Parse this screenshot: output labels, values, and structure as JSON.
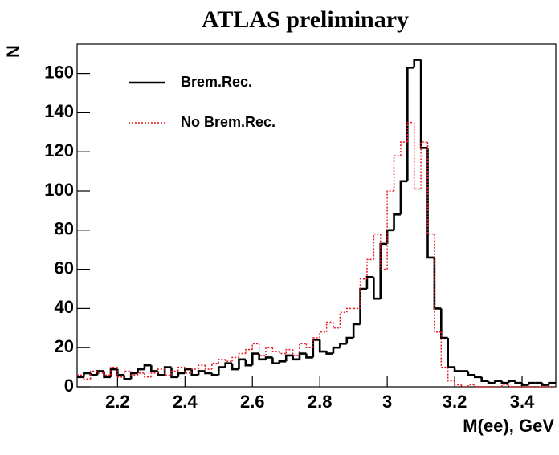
{
  "chart_data": {
    "type": "histogram",
    "title": "ATLAS preliminary",
    "x_label": "M(ee), GeV",
    "y_label": "N",
    "bins": [
      2.08,
      2.1,
      2.12,
      2.14,
      2.16,
      2.18,
      2.2,
      2.22,
      2.24,
      2.26,
      2.28,
      2.3,
      2.32,
      2.34,
      2.36,
      2.38,
      2.4,
      2.42,
      2.44,
      2.46,
      2.48,
      2.5,
      2.52,
      2.54,
      2.56,
      2.58,
      2.6,
      2.62,
      2.64,
      2.66,
      2.68,
      2.7,
      2.72,
      2.74,
      2.76,
      2.78,
      2.8,
      2.82,
      2.84,
      2.86,
      2.88,
      2.9,
      2.92,
      2.94,
      2.96,
      2.98,
      3.0,
      3.02,
      3.04,
      3.06,
      3.08,
      3.1,
      3.12,
      3.14,
      3.16,
      3.18,
      3.2,
      3.22,
      3.24,
      3.26,
      3.28,
      3.3,
      3.32,
      3.34,
      3.36,
      3.38,
      3.4,
      3.42,
      3.44,
      3.46,
      3.48,
      3.5
    ],
    "series": [
      {
        "name": "Brem.Rec.",
        "color": "#000000",
        "line_style": "solid",
        "values": [
          5,
          7,
          6,
          8,
          5,
          9,
          6,
          4,
          7,
          9,
          11,
          8,
          6,
          10,
          5,
          7,
          9,
          6,
          8,
          7,
          6,
          10,
          12,
          9,
          14,
          11,
          17,
          14,
          15,
          12,
          13,
          16,
          14,
          17,
          15,
          24,
          18,
          17,
          20,
          22,
          25,
          32,
          50,
          56,
          45,
          73,
          80,
          88,
          105,
          163,
          167,
          122,
          66,
          40,
          25,
          10,
          8,
          8,
          6,
          5,
          3,
          2,
          3,
          2,
          3,
          2,
          1,
          2,
          2,
          1,
          2
        ]
      },
      {
        "name": "No Brem.Rec.",
        "color": "#e8141e",
        "line_style": "dotted",
        "values": [
          6,
          4,
          8,
          7,
          6,
          10,
          5,
          8,
          6,
          7,
          5,
          7,
          9,
          6,
          8,
          10,
          7,
          9,
          11,
          9,
          12,
          14,
          13,
          15,
          17,
          19,
          22,
          16,
          20,
          18,
          17,
          19,
          16,
          22,
          20,
          25,
          28,
          33,
          30,
          38,
          40,
          40,
          55,
          65,
          78,
          60,
          100,
          118,
          125,
          135,
          101,
          125,
          78,
          28,
          10,
          3,
          1,
          0,
          1,
          0,
          0,
          0,
          0,
          1,
          0,
          0,
          0,
          0,
          0,
          0,
          0
        ]
      }
    ],
    "xlim": [
      2.08,
      3.5
    ],
    "ylim": [
      0,
      175
    ],
    "xticks": [
      2.2,
      2.4,
      2.6,
      2.8,
      3,
      3.2,
      3.4
    ],
    "yticks": [
      0,
      20,
      40,
      60,
      80,
      100,
      120,
      140,
      160
    ],
    "legend": "upper-left"
  }
}
